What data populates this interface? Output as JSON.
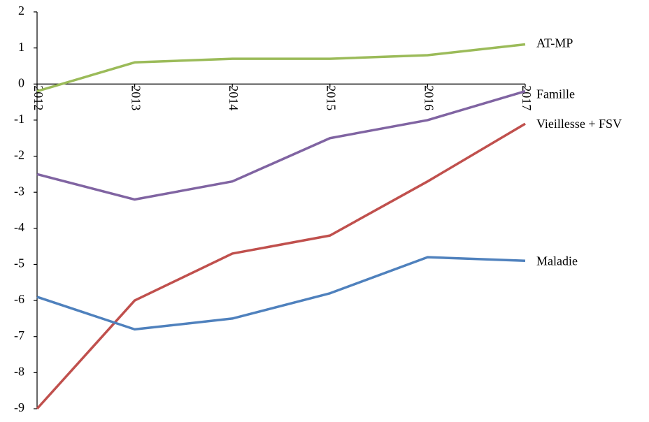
{
  "chart_data": {
    "type": "line",
    "categories": [
      "2012",
      "2013",
      "2014",
      "2015",
      "2016",
      "2017"
    ],
    "series": [
      {
        "name": "AT-MP",
        "color": "#9bbb59",
        "values": [
          -0.2,
          0.6,
          0.7,
          0.7,
          0.8,
          1.1
        ]
      },
      {
        "name": "Famille",
        "color": "#8064a2",
        "values": [
          -2.5,
          -3.2,
          -2.7,
          -1.5,
          -1.0,
          -0.2
        ]
      },
      {
        "name": "Vieillesse + FSV",
        "color": "#c0504d",
        "values": [
          -9.0,
          -6.0,
          -4.7,
          -4.2,
          -2.7,
          -1.1
        ]
      },
      {
        "name": "Maladie",
        "color": "#4f81bd",
        "values": [
          -5.9,
          -6.8,
          -6.5,
          -5.8,
          -4.8,
          -4.9
        ]
      }
    ],
    "ylim": [
      -9,
      2
    ],
    "yticks": [
      -9,
      -8,
      -7,
      -6,
      -5,
      -4,
      -3,
      -2,
      -1,
      0,
      1,
      2
    ]
  }
}
